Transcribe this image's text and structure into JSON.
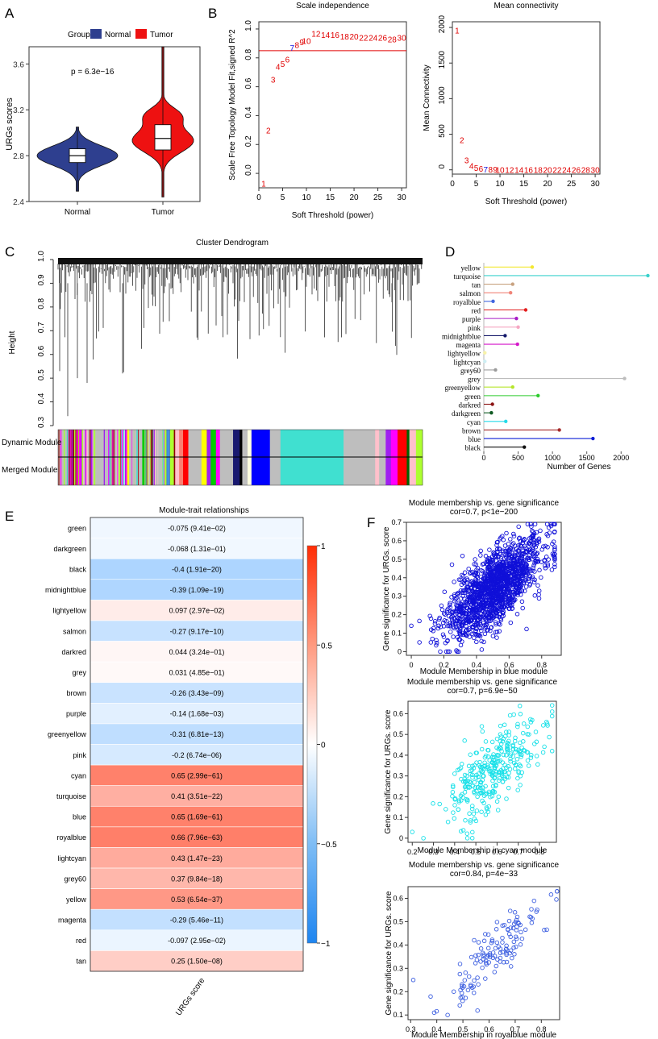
{
  "panel_labels": [
    "A",
    "B",
    "C",
    "D",
    "E",
    "F"
  ],
  "chart_data": [
    {
      "id": "A",
      "type": "violin",
      "legend_title": "Group",
      "legend": [
        {
          "name": "Normal",
          "color": "#2e3f8f"
        },
        {
          "name": "Tumor",
          "color": "#ee1111"
        }
      ],
      "categories": [
        "Normal",
        "Tumor"
      ],
      "ylabel": "URGs  scores",
      "ylim": [
        2.4,
        3.75
      ],
      "yticks": [
        "2.4",
        "2.8",
        "3.2",
        "3.6"
      ],
      "annotation": "p = 6.3e−16",
      "groups": [
        {
          "name": "Normal",
          "min": 2.49,
          "q1": 2.74,
          "median": 2.8,
          "q3": 2.86,
          "max": 3.05,
          "color": "#2e3f8f"
        },
        {
          "name": "Tumor",
          "min": 2.44,
          "q1": 2.85,
          "median": 2.95,
          "q3": 3.07,
          "max": 3.75,
          "color": "#ee1111"
        }
      ]
    },
    {
      "id": "B1",
      "type": "scatter-text",
      "title": "Scale independence",
      "xlabel": "Soft Threshold (power)",
      "ylabel": "Scale Free Topology Model Fit,signed R^2",
      "xlim": [
        0,
        31
      ],
      "ylim": [
        -0.1,
        1.05
      ],
      "xticks": [
        "0",
        "5",
        "10",
        "15",
        "20",
        "25",
        "30"
      ],
      "yticks": [
        "0.0",
        "0.2",
        "0.4",
        "0.6",
        "0.8",
        "1.0"
      ],
      "hline": 0.85,
      "highlight_power": 7,
      "x": [
        1,
        2,
        3,
        4,
        5,
        6,
        7,
        8,
        9,
        10,
        12,
        14,
        16,
        18,
        20,
        22,
        24,
        26,
        28,
        30
      ],
      "y": [
        -0.07,
        0.3,
        0.65,
        0.74,
        0.76,
        0.79,
        0.87,
        0.89,
        0.91,
        0.92,
        0.97,
        0.96,
        0.96,
        0.95,
        0.95,
        0.94,
        0.94,
        0.94,
        0.93,
        0.94
      ]
    },
    {
      "id": "B2",
      "type": "scatter-text",
      "title": "Mean connectivity",
      "xlabel": "Soft Threshold (power)",
      "ylabel": "Mean Connectivity",
      "xlim": [
        0,
        31
      ],
      "ylim": [
        -60,
        2080
      ],
      "xticks": [
        "0",
        "5",
        "10",
        "15",
        "20",
        "25",
        "30"
      ],
      "yticks": [
        "0",
        "500",
        "1000",
        "1500",
        "2000"
      ],
      "highlight_power": 7,
      "x": [
        1,
        2,
        3,
        4,
        5,
        6,
        7,
        8,
        9,
        10,
        12,
        14,
        16,
        18,
        20,
        22,
        24,
        26,
        28,
        30
      ],
      "y": [
        1960,
        420,
        140,
        60,
        30,
        18,
        10,
        8,
        6,
        5,
        3,
        2,
        2,
        1,
        1,
        1,
        1,
        1,
        1,
        1
      ]
    },
    {
      "id": "C",
      "type": "dendrogram",
      "title": "Cluster Dendrogram",
      "ylabel": "Height",
      "ylim": [
        0.3,
        1.0
      ],
      "yticks": [
        "0.3",
        "0.4",
        "0.5",
        "0.6",
        "0.7",
        "0.8",
        "0.9",
        "1.0"
      ],
      "track_labels": [
        "Dynamic Module",
        "Merged Module"
      ],
      "module_track": [
        "grey",
        "brown",
        "darkred",
        "brown",
        "magenta",
        "grey",
        "turquoise",
        "brown",
        "grey",
        "lightcyan",
        "yellow",
        "grey",
        "green",
        "black",
        "grey",
        "royalblue",
        "greenyellow",
        "darkred",
        "pink",
        "salmon",
        "red",
        "grey",
        "yellow",
        "purple",
        "green",
        "magenta",
        "grey",
        "midnightblue",
        "black",
        "grey",
        "lightyellow",
        "blue",
        "grey",
        "turquoise",
        "grey",
        "pink",
        "grey",
        "purple",
        "magenta",
        "red",
        "darkgreen",
        "pink",
        "greenyellow"
      ]
    },
    {
      "id": "D",
      "type": "lollipop",
      "xlabel": "Number of Genes",
      "xlim": [
        0,
        2420
      ],
      "xticks": [
        "0",
        "500",
        "1000",
        "1500",
        "2000"
      ],
      "categories": [
        "yellow",
        "turquoise",
        "tan",
        "salmon",
        "royalblue",
        "red",
        "purple",
        "pink",
        "midnightblue",
        "magenta",
        "lightyellow",
        "lightcyan",
        "grey60",
        "grey",
        "greenyellow",
        "green",
        "darkred",
        "darkgreen",
        "cyan",
        "brown",
        "blue",
        "black"
      ],
      "values": [
        705,
        2390,
        420,
        390,
        135,
        610,
        475,
        500,
        310,
        490,
        15,
        15,
        170,
        2050,
        420,
        790,
        125,
        110,
        320,
        1100,
        1590,
        590
      ],
      "colors": [
        "#f3e830",
        "#3ad1cc",
        "#c8a280",
        "#f08478",
        "#4166e0",
        "#e31d1d",
        "#a81ec8",
        "#f5a6c2",
        "#161a6b",
        "#d517c9",
        "#f7f2a8",
        "#cdeef3",
        "#9c9c9c",
        "#bdbdbd",
        "#b5e52a",
        "#2ecb2e",
        "#8b1313",
        "#0f5a22",
        "#25dae8",
        "#a52a2a",
        "#0b1dd6",
        "#101010"
      ]
    },
    {
      "id": "E",
      "type": "heatmap",
      "title": "Module-trait relationships",
      "column": "URGs score",
      "colorbar_ticks": [
        "1",
        "0.5",
        "0",
        "−0.5",
        "−1"
      ],
      "colorbar_range": [
        -1,
        1
      ],
      "rows": [
        "green",
        "darkgreen",
        "black",
        "midnightblue",
        "lightyellow",
        "salmon",
        "darkred",
        "grey",
        "brown",
        "purple",
        "greenyellow",
        "pink",
        "cyan",
        "turquoise",
        "blue",
        "royalblue",
        "lightcyan",
        "grey60",
        "yellow",
        "magenta",
        "red",
        "tan"
      ],
      "values": [
        -0.075,
        -0.068,
        -0.4,
        -0.39,
        0.097,
        -0.27,
        0.044,
        0.031,
        -0.26,
        -0.14,
        -0.31,
        -0.2,
        0.65,
        0.41,
        0.65,
        0.66,
        0.43,
        0.37,
        0.53,
        -0.29,
        -0.097,
        0.25
      ],
      "pvalues": [
        "9.41e−02",
        "1.31e−01",
        "1.91e−20",
        "1.09e−19",
        "2.97e−02",
        "9.17e−10",
        "3.24e−01",
        "4.85e−01",
        "3.43e−09",
        "1.68e−03",
        "6.81e−13",
        "6.74e−06",
        "2.99e−61",
        "3.51e−22",
        "1.69e−61",
        "7.96e−63",
        "1.47e−23",
        "9.84e−18",
        "6.54e−37",
        "5.46e−11",
        "2.95e−02",
        "1.50e−08"
      ]
    },
    {
      "id": "F1",
      "type": "scatter",
      "title": "Module membership vs. gene significance",
      "subtitle": "cor=0.7, p<1e−200",
      "xlabel": "Module Membership in blue module",
      "ylabel": "Gene significance for URGs. score",
      "xlim": [
        -0.03,
        0.92
      ],
      "ylim": [
        -0.02,
        0.7
      ],
      "xticks": [
        0,
        0.2,
        0.4,
        0.6,
        0.8
      ],
      "yticks": [
        0,
        0.1,
        0.2,
        0.3,
        0.4,
        0.5,
        0.6,
        0.7
      ],
      "color": "#1010d8",
      "cor": 0.7,
      "n": 1590,
      "xmin": 0.0,
      "xmax": 0.88,
      "ymin": 0.0,
      "ymax": 0.69,
      "x": [
        0.0,
        0.05,
        0.12,
        0.2,
        0.86
      ],
      "y": [
        0.14,
        0.05,
        0.05,
        0.08,
        0.69
      ]
    },
    {
      "id": "F2",
      "type": "scatter",
      "title": "Module membership vs. gene significance",
      "subtitle": "cor=0.7, p=6.9e−50",
      "xlabel": "Module Membership in cyan module",
      "ylabel": "Gene significance for URGs. score",
      "xlim": [
        0.18,
        0.88
      ],
      "ylim": [
        -0.02,
        0.66
      ],
      "xticks": [
        0.2,
        0.3,
        0.4,
        0.5,
        0.6,
        0.7,
        0.8
      ],
      "yticks": [
        0,
        0.1,
        0.2,
        0.3,
        0.4,
        0.5,
        0.6
      ],
      "color": "#16e0e8",
      "cor": 0.7,
      "n": 320,
      "xmin": 0.2,
      "xmax": 0.86,
      "ymin": 0.0,
      "ymax": 0.64,
      "x": [
        0.2,
        0.46,
        0.86
      ],
      "y": [
        0.03,
        0.0,
        0.61
      ]
    },
    {
      "id": "F3",
      "type": "scatter",
      "title": "Module membership vs. gene significance",
      "subtitle": "cor=0.84, p=4e−33",
      "xlabel": "Module Membership in royalblue module",
      "ylabel": "Gene significance for URGs. score",
      "xlim": [
        0.29,
        0.87
      ],
      "ylim": [
        0.08,
        0.65
      ],
      "xticks": [
        0.3,
        0.4,
        0.5,
        0.6,
        0.7,
        0.8
      ],
      "yticks": [
        0.1,
        0.2,
        0.3,
        0.4,
        0.5,
        0.6
      ],
      "color": "#3d5fe0",
      "cor": 0.84,
      "n": 135,
      "xmin": 0.31,
      "xmax": 0.86,
      "ymin": 0.1,
      "ymax": 0.63,
      "x": [
        0.31,
        0.39,
        0.86
      ],
      "y": [
        0.25,
        0.11,
        0.63
      ]
    }
  ]
}
